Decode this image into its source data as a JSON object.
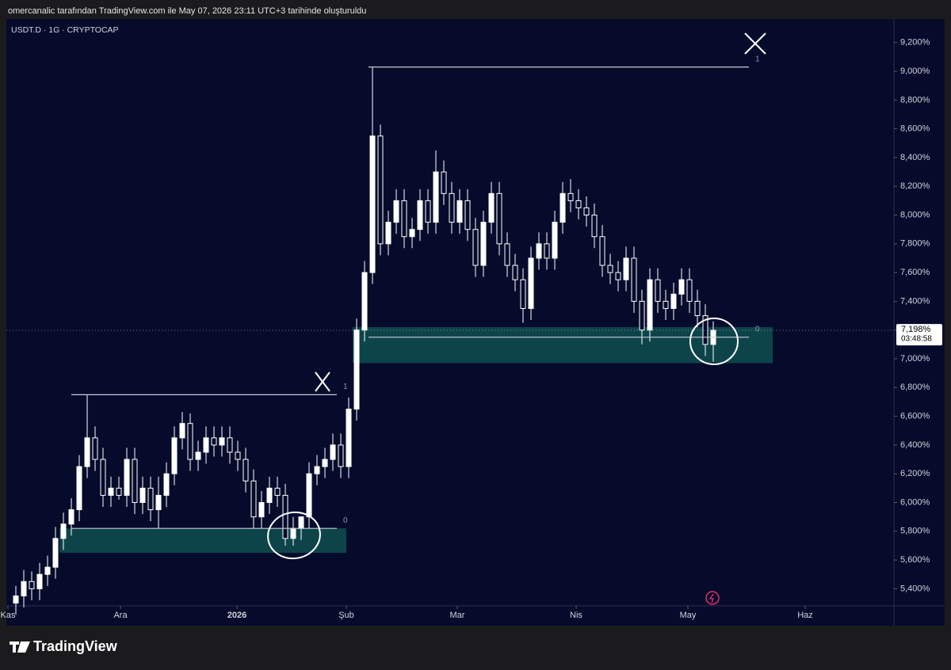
{
  "header": "omercanalic tarafından TradingView.com ile May 07, 2026 23:11 UTC+3 tarihinde oluşturuldu",
  "logo": "TradingView",
  "chart_data": {
    "type": "candlestick",
    "title": "USDT.D · 1G · CRYPTOCAP",
    "open": [
      5.3,
      5.35,
      5.45,
      5.4,
      5.5,
      5.55,
      5.75,
      5.85,
      5.95,
      6.25,
      6.45,
      6.3,
      6.05,
      6.1,
      6.05,
      6.3,
      6.0,
      6.1,
      5.95,
      6.05,
      6.2,
      6.45,
      6.55,
      6.3,
      6.35,
      6.45,
      6.4,
      6.45,
      6.35,
      6.3,
      6.15,
      5.9,
      6.0,
      6.1,
      6.05,
      5.75,
      5.82,
      5.9,
      6.2,
      6.25,
      6.3,
      6.4,
      6.25,
      6.65,
      7.2,
      7.6,
      8.55,
      7.8,
      7.95,
      8.1,
      7.85,
      7.9,
      8.1,
      7.95,
      8.3,
      8.15,
      7.95,
      8.1,
      7.9,
      7.65,
      7.95,
      8.15,
      7.8,
      7.65,
      7.55,
      7.35,
      7.7,
      7.8,
      7.7,
      7.95,
      8.15,
      8.1,
      8.05,
      8.0,
      7.85,
      7.65,
      7.6,
      7.55,
      7.7,
      7.4,
      7.2,
      7.55,
      7.4,
      7.35,
      7.45,
      7.55,
      7.4,
      7.3,
      7.1
    ],
    "high": [
      5.42,
      5.53,
      5.52,
      5.58,
      5.63,
      5.83,
      5.93,
      6.03,
      6.33,
      6.75,
      6.53,
      6.38,
      6.18,
      6.18,
      6.38,
      6.38,
      6.18,
      6.18,
      6.18,
      6.28,
      6.53,
      6.63,
      6.62,
      6.43,
      6.53,
      6.53,
      6.53,
      6.53,
      6.43,
      6.38,
      6.23,
      6.08,
      6.18,
      6.18,
      6.13,
      5.9,
      5.9,
      6.28,
      6.33,
      6.38,
      6.48,
      6.48,
      6.73,
      7.28,
      7.68,
      9.03,
      8.63,
      8.03,
      8.18,
      8.18,
      7.98,
      8.18,
      8.18,
      8.45,
      8.38,
      8.23,
      8.18,
      8.18,
      7.98,
      8.03,
      8.23,
      8.23,
      7.88,
      7.73,
      7.63,
      7.78,
      7.88,
      7.88,
      8.03,
      8.23,
      8.25,
      8.18,
      8.13,
      8.08,
      7.93,
      7.73,
      7.68,
      7.78,
      7.78,
      7.48,
      7.63,
      7.63,
      7.48,
      7.53,
      7.63,
      7.63,
      7.48,
      7.38,
      7.26
    ],
    "low": [
      5.22,
      5.27,
      5.32,
      5.32,
      5.42,
      5.47,
      5.67,
      5.77,
      5.87,
      6.17,
      6.22,
      5.97,
      5.97,
      6.02,
      5.97,
      5.92,
      5.92,
      5.87,
      5.82,
      5.97,
      6.12,
      6.37,
      6.22,
      6.22,
      6.27,
      6.32,
      6.32,
      6.27,
      6.22,
      6.07,
      5.82,
      5.82,
      5.92,
      5.97,
      5.7,
      5.7,
      5.74,
      5.82,
      6.12,
      6.17,
      6.22,
      6.17,
      6.17,
      6.57,
      7.12,
      7.52,
      7.72,
      7.72,
      7.87,
      7.77,
      7.77,
      7.82,
      7.87,
      7.87,
      8.07,
      7.87,
      7.87,
      7.82,
      7.57,
      7.57,
      7.87,
      7.72,
      7.57,
      7.47,
      7.25,
      7.27,
      7.62,
      7.62,
      7.62,
      7.87,
      8.02,
      7.97,
      7.92,
      7.77,
      7.57,
      7.52,
      7.47,
      7.47,
      7.32,
      7.1,
      7.12,
      7.32,
      7.27,
      7.27,
      7.37,
      7.32,
      7.22,
      7.02,
      6.98
    ],
    "close": [
      5.35,
      5.45,
      5.4,
      5.5,
      5.55,
      5.75,
      5.85,
      5.95,
      6.25,
      6.45,
      6.3,
      6.05,
      6.1,
      6.05,
      6.3,
      6.0,
      6.1,
      5.95,
      6.05,
      6.2,
      6.45,
      6.55,
      6.3,
      6.35,
      6.45,
      6.4,
      6.45,
      6.35,
      6.3,
      6.15,
      5.9,
      6.0,
      6.1,
      6.05,
      5.75,
      5.82,
      5.9,
      6.2,
      6.25,
      6.3,
      6.4,
      6.25,
      6.65,
      7.2,
      7.6,
      8.55,
      7.8,
      7.95,
      8.1,
      7.85,
      7.9,
      8.1,
      7.95,
      8.3,
      8.15,
      7.95,
      8.1,
      7.9,
      7.65,
      7.95,
      8.15,
      7.8,
      7.65,
      7.55,
      7.35,
      7.7,
      7.8,
      7.7,
      7.95,
      8.15,
      8.1,
      8.05,
      8.0,
      7.85,
      7.65,
      7.6,
      7.55,
      7.7,
      7.4,
      7.2,
      7.55,
      7.4,
      7.35,
      7.45,
      7.55,
      7.4,
      7.3,
      7.1,
      7.198
    ],
    "xlim": [
      -1.2,
      110.8
    ],
    "xticks": [
      {
        "value": -1.0,
        "label": "Kas"
      },
      {
        "value": 13.2,
        "label": "Ara"
      },
      {
        "value": 27.9,
        "label": "2026"
      },
      {
        "value": 41.7,
        "label": "Şub"
      },
      {
        "value": 55.7,
        "label": "Mar"
      },
      {
        "value": 70.7,
        "label": "Nis"
      },
      {
        "value": 84.8,
        "label": "May"
      },
      {
        "value": 99.6,
        "label": "Haz"
      }
    ],
    "ylim": [
      5.281,
      9.364
    ],
    "yticks": [
      {
        "value": 5.4,
        "label": "5,400%"
      },
      {
        "value": 5.6,
        "label": "5,600%"
      },
      {
        "value": 5.8,
        "label": "5,800%"
      },
      {
        "value": 6.0,
        "label": "6,000%"
      },
      {
        "value": 6.2,
        "label": "6,200%"
      },
      {
        "value": 6.4,
        "label": "6,400%"
      },
      {
        "value": 6.6,
        "label": "6,600%"
      },
      {
        "value": 6.8,
        "label": "6,800%"
      },
      {
        "value": 7.0,
        "label": "7,000%"
      },
      {
        "value": 7.2,
        "label": "7,200%"
      },
      {
        "value": 7.4,
        "label": "7,400%"
      },
      {
        "value": 7.6,
        "label": "7,600%"
      },
      {
        "value": 7.8,
        "label": "7,800%"
      },
      {
        "value": 8.0,
        "label": "8,000%"
      },
      {
        "value": 8.2,
        "label": "8,200%"
      },
      {
        "value": 8.4,
        "label": "8,400%"
      },
      {
        "value": 8.6,
        "label": "8,600%"
      },
      {
        "value": 8.8,
        "label": "8,800%"
      },
      {
        "value": 9.0,
        "label": "9,000%"
      },
      {
        "value": 9.2,
        "label": "9,200%"
      }
    ],
    "zones": [
      {
        "x": [
          5.5,
          41.7
        ],
        "y": [
          5.65,
          5.82
        ]
      },
      {
        "x": [
          42.5,
          95.5
        ],
        "y": [
          6.97,
          7.22
        ]
      }
    ],
    "fib_levels": [
      {
        "x": [
          7.0,
          40.5
        ],
        "levels": [
          {
            "value": 6.75,
            "label": "1"
          },
          {
            "value": 5.82,
            "label": "0"
          }
        ]
      },
      {
        "x": [
          44.5,
          92.5
        ],
        "levels": [
          {
            "value": 9.03,
            "label": "1"
          },
          {
            "value": 7.15,
            "label": "0"
          }
        ]
      }
    ],
    "price_label": {
      "value": 7.198,
      "label": "7,198%"
    },
    "countdown": "03:48:58",
    "color": "#ffffff"
  }
}
